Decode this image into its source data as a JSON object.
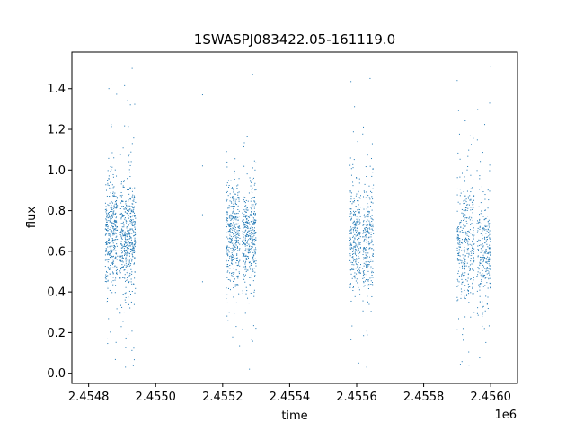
{
  "chart_data": {
    "type": "scatter",
    "title": "1SWASPJ083422.05-161119.0",
    "xlabel": "time",
    "ylabel": "flux",
    "x_offset_label": "1e6",
    "xlim": [
      2.45475,
      2.45608
    ],
    "ylim": [
      -0.05,
      1.58
    ],
    "x_ticks": [
      2.4548,
      2.455,
      2.4552,
      2.4554,
      2.4556,
      2.4558,
      2.456
    ],
    "x_tick_labels": [
      "2.4548",
      "2.4550",
      "2.4552",
      "2.4554",
      "2.4556",
      "2.4558",
      "2.4560"
    ],
    "y_ticks": [
      0.0,
      0.2,
      0.4,
      0.6,
      0.8,
      1.0,
      1.2,
      1.4
    ],
    "y_tick_labels": [
      "0.0",
      "0.2",
      "0.4",
      "0.6",
      "0.8",
      "1.0",
      "1.2",
      "1.4"
    ],
    "grid": false,
    "marker_color": "#1f77b4",
    "clusters": [
      {
        "x_start": 2.45485,
        "x_end": 2.45494,
        "center": 0.68,
        "spread": 0.14,
        "n": 900,
        "gap_at": 2.45489
      },
      {
        "x_start": 2.45521,
        "x_end": 2.4553,
        "center": 0.67,
        "spread": 0.13,
        "n": 800,
        "gap_at": 2.455255
      },
      {
        "x_start": 2.45558,
        "x_end": 2.45565,
        "center": 0.66,
        "spread": 0.14,
        "n": 550,
        "gap_at": 2.455615
      },
      {
        "x_start": 2.4559,
        "x_end": 2.456,
        "center": 0.64,
        "spread": 0.16,
        "n": 650,
        "gap_at": 2.455955
      }
    ],
    "outliers": [
      {
        "x": 2.45514,
        "y": 1.37
      },
      {
        "x": 2.45514,
        "y": 0.78
      },
      {
        "x": 2.45514,
        "y": 0.45
      },
      {
        "x": 2.45514,
        "y": 1.02
      },
      {
        "x": 2.45491,
        "y": 0.03
      },
      {
        "x": 2.45528,
        "y": 0.02
      },
      {
        "x": 2.45563,
        "y": 0.03
      },
      {
        "x": 2.456,
        "y": 1.51
      },
      {
        "x": 2.45493,
        "y": 1.5
      },
      {
        "x": 2.45529,
        "y": 1.47
      },
      {
        "x": 2.4559,
        "y": 1.44
      },
      {
        "x": 2.45564,
        "y": 1.45
      }
    ]
  }
}
